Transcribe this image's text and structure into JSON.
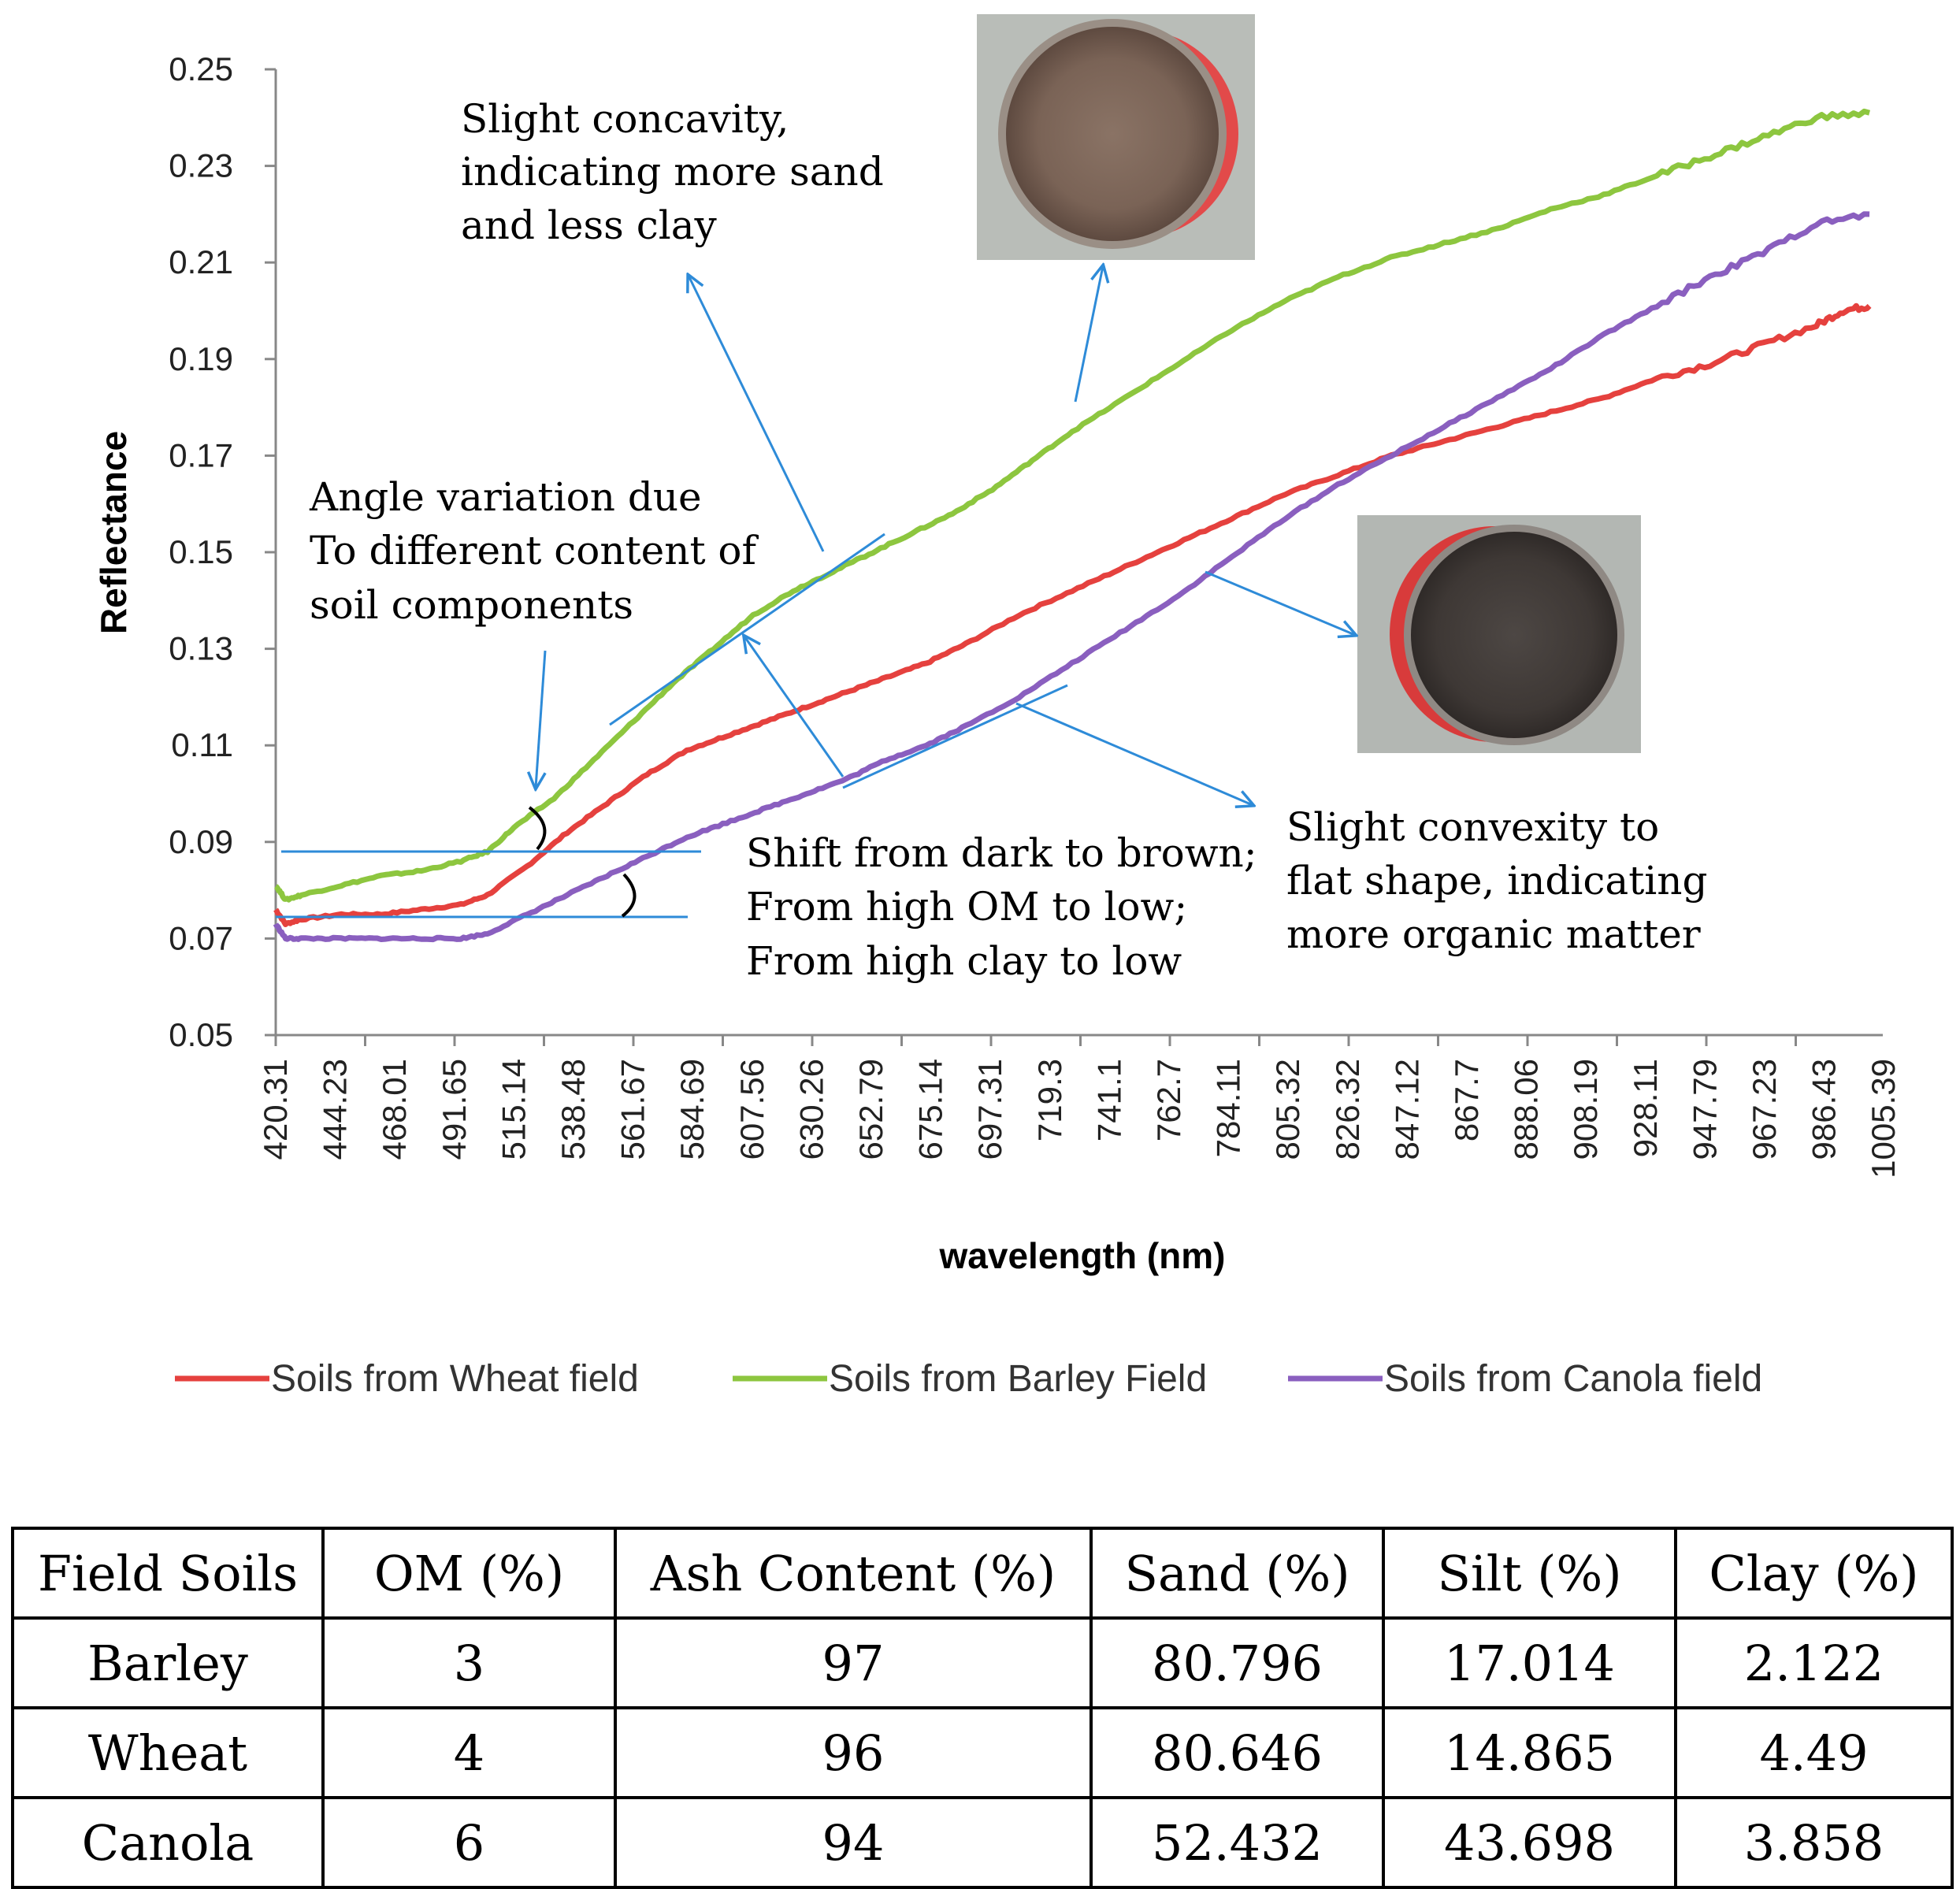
{
  "chart_data": {
    "type": "line",
    "xlabel": "wavelength (nm)",
    "ylabel": "Reflectance",
    "ylim": [
      0.05,
      0.25
    ],
    "xlim": [
      420.31,
      1025
    ],
    "yticks": [
      "0.05",
      "0.07",
      "0.09",
      "0.11",
      "0.13",
      "0.15",
      "0.17",
      "0.19",
      "0.21",
      "0.23",
      "0.25"
    ],
    "xticks": [
      "420.31",
      "444.23",
      "468.01",
      "491.65",
      "515.14",
      "538.48",
      "561.67",
      "584.69",
      "607.56",
      "630.26",
      "652.79",
      "675.14",
      "697.31",
      "719.3",
      "741.1",
      "762.7",
      "784.11",
      "805.32",
      "826.32",
      "847.12",
      "867.7",
      "888.06",
      "908.19",
      "928.11",
      "947.79",
      "967.23",
      "986.43",
      "1005.39"
    ],
    "legend_position": "bottom",
    "series": [
      {
        "name": "Soils from Wheat field",
        "color": "#e5413e",
        "points": [
          [
            420.3,
            0.076
          ],
          [
            424,
            0.073
          ],
          [
            430,
            0.074
          ],
          [
            445,
            0.075
          ],
          [
            460,
            0.075
          ],
          [
            475,
            0.076
          ],
          [
            490,
            0.077
          ],
          [
            500,
            0.079
          ],
          [
            515,
            0.085
          ],
          [
            530,
            0.092
          ],
          [
            545,
            0.098
          ],
          [
            560,
            0.104
          ],
          [
            575,
            0.109
          ],
          [
            590,
            0.112
          ],
          [
            605,
            0.115
          ],
          [
            620,
            0.118
          ],
          [
            635,
            0.121
          ],
          [
            650,
            0.124
          ],
          [
            665,
            0.127
          ],
          [
            680,
            0.131
          ],
          [
            700,
            0.137
          ],
          [
            720,
            0.142
          ],
          [
            740,
            0.147
          ],
          [
            760,
            0.152
          ],
          [
            780,
            0.157
          ],
          [
            800,
            0.162
          ],
          [
            820,
            0.166
          ],
          [
            840,
            0.17
          ],
          [
            860,
            0.173
          ],
          [
            880,
            0.176
          ],
          [
            900,
            0.179
          ],
          [
            920,
            0.182
          ],
          [
            940,
            0.186
          ],
          [
            960,
            0.189
          ],
          [
            980,
            0.193
          ],
          [
            1000,
            0.197
          ],
          [
            1010,
            0.2
          ],
          [
            1020,
            0.201
          ]
        ]
      },
      {
        "name": "Soils from Barley Field",
        "color": "#8dc63f",
        "points": [
          [
            420.3,
            0.081
          ],
          [
            424,
            0.078
          ],
          [
            430,
            0.079
          ],
          [
            445,
            0.081
          ],
          [
            460,
            0.083
          ],
          [
            475,
            0.084
          ],
          [
            490,
            0.086
          ],
          [
            500,
            0.088
          ],
          [
            510,
            0.093
          ],
          [
            525,
            0.099
          ],
          [
            540,
            0.107
          ],
          [
            555,
            0.115
          ],
          [
            570,
            0.123
          ],
          [
            585,
            0.13
          ],
          [
            600,
            0.137
          ],
          [
            615,
            0.142
          ],
          [
            630,
            0.146
          ],
          [
            645,
            0.15
          ],
          [
            660,
            0.154
          ],
          [
            675,
            0.158
          ],
          [
            690,
            0.163
          ],
          [
            705,
            0.169
          ],
          [
            720,
            0.175
          ],
          [
            740,
            0.182
          ],
          [
            760,
            0.189
          ],
          [
            780,
            0.196
          ],
          [
            800,
            0.202
          ],
          [
            820,
            0.207
          ],
          [
            840,
            0.211
          ],
          [
            860,
            0.214
          ],
          [
            880,
            0.217
          ],
          [
            900,
            0.221
          ],
          [
            920,
            0.224
          ],
          [
            940,
            0.228
          ],
          [
            960,
            0.232
          ],
          [
            980,
            0.236
          ],
          [
            1000,
            0.24
          ],
          [
            1020,
            0.241
          ]
        ]
      },
      {
        "name": "Soils from Canola field",
        "color": "#8a5fbf",
        "points": [
          [
            420.3,
            0.073
          ],
          [
            424,
            0.07
          ],
          [
            430,
            0.07
          ],
          [
            445,
            0.07
          ],
          [
            460,
            0.07
          ],
          [
            475,
            0.07
          ],
          [
            490,
            0.07
          ],
          [
            500,
            0.071
          ],
          [
            515,
            0.075
          ],
          [
            530,
            0.079
          ],
          [
            545,
            0.083
          ],
          [
            560,
            0.087
          ],
          [
            575,
            0.091
          ],
          [
            590,
            0.094
          ],
          [
            605,
            0.097
          ],
          [
            620,
            0.1
          ],
          [
            635,
            0.103
          ],
          [
            650,
            0.107
          ],
          [
            665,
            0.11
          ],
          [
            680,
            0.114
          ],
          [
            700,
            0.12
          ],
          [
            720,
            0.127
          ],
          [
            740,
            0.134
          ],
          [
            760,
            0.141
          ],
          [
            780,
            0.149
          ],
          [
            800,
            0.157
          ],
          [
            820,
            0.164
          ],
          [
            840,
            0.17
          ],
          [
            860,
            0.176
          ],
          [
            880,
            0.182
          ],
          [
            900,
            0.188
          ],
          [
            920,
            0.195
          ],
          [
            940,
            0.201
          ],
          [
            960,
            0.207
          ],
          [
            980,
            0.212
          ],
          [
            1000,
            0.218
          ],
          [
            1020,
            0.22
          ]
        ]
      }
    ],
    "annotations": [
      {
        "lines": [
          "Slight concavity,",
          "indicating more sand",
          "and less clay"
        ]
      },
      {
        "lines": [
          "Angle variation due",
          "To different content of",
          "soil components"
        ]
      },
      {
        "lines": [
          "Shift from dark to brown;",
          "From high OM to low;",
          "From high clay to low"
        ]
      },
      {
        "lines": [
          "Slight convexity to",
          "flat shape, indicating",
          "more organic matter"
        ]
      }
    ]
  },
  "table": {
    "headers": [
      "Field Soils",
      "OM (%)",
      "Ash Content (%)",
      "Sand (%)",
      "Silt (%)",
      "Clay (%)"
    ],
    "rows": [
      [
        "Barley",
        "3",
        "97",
        "80.796",
        "17.014",
        "2.122"
      ],
      [
        "Wheat",
        "4",
        "96",
        "80.646",
        "14.865",
        "4.49"
      ],
      [
        "Canola",
        "6",
        "94",
        "52.432",
        "43.698",
        "3.858"
      ]
    ]
  },
  "colors": {
    "arrow": "#2e8bd8",
    "photo_bg": "#b5b9b3"
  }
}
